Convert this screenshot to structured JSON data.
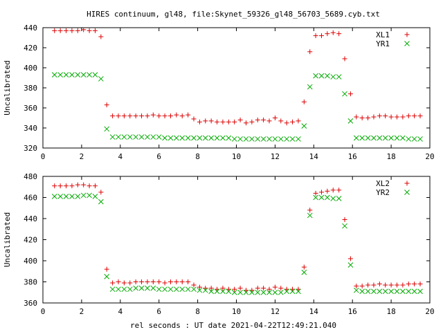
{
  "title": "HIRES continuum, gl48, file:Skynet_59326_gl48_56703_5689.cyb.txt",
  "xlabel": "rel seconds : UT date 2021-04-22T12:49:21.040",
  "colors": {
    "red": "#dd0000",
    "green": "#00aa00",
    "frame": "#000000"
  },
  "chart_data": [
    {
      "type": "scatter",
      "ylabel": "Uncalibrated",
      "xlim": [
        0,
        20
      ],
      "ylim": [
        320,
        440
      ],
      "xticks": [
        0,
        2,
        4,
        6,
        8,
        10,
        12,
        14,
        16,
        18,
        20
      ],
      "yticks": [
        320,
        340,
        360,
        380,
        400,
        420,
        440
      ],
      "legend_position": "top-right",
      "series": [
        {
          "name": "XL1",
          "marker": "plus",
          "color": "#dd0000",
          "x": [
            0.6,
            0.9,
            1.2,
            1.5,
            1.8,
            2.1,
            2.4,
            2.7,
            3.0,
            3.3,
            3.6,
            3.9,
            4.2,
            4.5,
            4.8,
            5.1,
            5.4,
            5.7,
            6.0,
            6.3,
            6.6,
            6.9,
            7.2,
            7.5,
            7.8,
            8.1,
            8.4,
            8.7,
            9.0,
            9.3,
            9.6,
            9.9,
            10.2,
            10.5,
            10.8,
            11.1,
            11.4,
            11.7,
            12.0,
            12.3,
            12.6,
            12.9,
            13.2,
            13.5,
            13.8,
            14.1,
            14.4,
            14.7,
            15.0,
            15.3,
            15.6,
            15.9,
            16.2,
            16.5,
            16.8,
            17.1,
            17.4,
            17.7,
            18.0,
            18.3,
            18.6,
            18.9,
            19.2,
            19.5
          ],
          "y": [
            437,
            437,
            437,
            437,
            437,
            438,
            437,
            437,
            431,
            363,
            352,
            352,
            352,
            352,
            352,
            352,
            352,
            353,
            352,
            352,
            352,
            353,
            352,
            353,
            349,
            346,
            347,
            347,
            346,
            346,
            346,
            346,
            348,
            345,
            346,
            348,
            348,
            347,
            350,
            347,
            345,
            346,
            347,
            366,
            416,
            432,
            432,
            434,
            435,
            434,
            409,
            374,
            351,
            350,
            350,
            351,
            352,
            352,
            351,
            351,
            351,
            352,
            352,
            352
          ]
        },
        {
          "name": "YR1",
          "marker": "cross",
          "color": "#00aa00",
          "x": [
            0.6,
            0.9,
            1.2,
            1.5,
            1.8,
            2.1,
            2.4,
            2.7,
            3.0,
            3.3,
            3.6,
            3.9,
            4.2,
            4.5,
            4.8,
            5.1,
            5.4,
            5.7,
            6.0,
            6.3,
            6.6,
            6.9,
            7.2,
            7.5,
            7.8,
            8.1,
            8.4,
            8.7,
            9.0,
            9.3,
            9.6,
            9.9,
            10.2,
            10.5,
            10.8,
            11.1,
            11.4,
            11.7,
            12.0,
            12.3,
            12.6,
            12.9,
            13.2,
            13.5,
            13.8,
            14.1,
            14.4,
            14.7,
            15.0,
            15.3,
            15.6,
            15.9,
            16.2,
            16.5,
            16.8,
            17.1,
            17.4,
            17.7,
            18.0,
            18.3,
            18.6,
            18.9,
            19.2,
            19.5
          ],
          "y": [
            393,
            393,
            393,
            393,
            393,
            393,
            393,
            393,
            389,
            339,
            331,
            331,
            331,
            331,
            331,
            331,
            331,
            331,
            331,
            330,
            330,
            330,
            330,
            330,
            330,
            330,
            330,
            330,
            330,
            330,
            330,
            329,
            329,
            329,
            329,
            329,
            329,
            329,
            329,
            329,
            329,
            329,
            329,
            342,
            381,
            392,
            392,
            392,
            391,
            391,
            374,
            347,
            330,
            330,
            330,
            330,
            330,
            330,
            330,
            330,
            330,
            329,
            329,
            329
          ]
        }
      ]
    },
    {
      "type": "scatter",
      "ylabel": "Uncalibrated",
      "xlim": [
        0,
        20
      ],
      "ylim": [
        360,
        480
      ],
      "xticks": [
        0,
        2,
        4,
        6,
        8,
        10,
        12,
        14,
        16,
        18,
        20
      ],
      "yticks": [
        360,
        380,
        400,
        420,
        440,
        460,
        480
      ],
      "legend_position": "top-right",
      "series": [
        {
          "name": "XL2",
          "marker": "plus",
          "color": "#dd0000",
          "x": [
            0.6,
            0.9,
            1.2,
            1.5,
            1.8,
            2.1,
            2.4,
            2.7,
            3.0,
            3.3,
            3.6,
            3.9,
            4.2,
            4.5,
            4.8,
            5.1,
            5.4,
            5.7,
            6.0,
            6.3,
            6.6,
            6.9,
            7.2,
            7.5,
            7.8,
            8.1,
            8.4,
            8.7,
            9.0,
            9.3,
            9.6,
            9.9,
            10.2,
            10.5,
            10.8,
            11.1,
            11.4,
            11.7,
            12.0,
            12.3,
            12.6,
            12.9,
            13.2,
            13.5,
            13.8,
            14.1,
            14.4,
            14.7,
            15.0,
            15.3,
            15.6,
            15.9,
            16.2,
            16.5,
            16.8,
            17.1,
            17.4,
            17.7,
            18.0,
            18.3,
            18.6,
            18.9,
            19.2,
            19.5
          ],
          "y": [
            471,
            471,
            471,
            471,
            472,
            472,
            471,
            471,
            465,
            392,
            379,
            380,
            379,
            379,
            380,
            380,
            380,
            380,
            380,
            379,
            380,
            380,
            380,
            380,
            377,
            375,
            374,
            374,
            373,
            374,
            373,
            373,
            374,
            372,
            372,
            374,
            374,
            373,
            375,
            374,
            373,
            373,
            373,
            394,
            448,
            464,
            465,
            466,
            467,
            467,
            439,
            402,
            376,
            376,
            377,
            377,
            378,
            377,
            377,
            377,
            377,
            378,
            378,
            378
          ]
        },
        {
          "name": "YR2",
          "marker": "cross",
          "color": "#00aa00",
          "x": [
            0.6,
            0.9,
            1.2,
            1.5,
            1.8,
            2.1,
            2.4,
            2.7,
            3.0,
            3.3,
            3.6,
            3.9,
            4.2,
            4.5,
            4.8,
            5.1,
            5.4,
            5.7,
            6.0,
            6.3,
            6.6,
            6.9,
            7.2,
            7.5,
            7.8,
            8.1,
            8.4,
            8.7,
            9.0,
            9.3,
            9.6,
            9.9,
            10.2,
            10.5,
            10.8,
            11.1,
            11.4,
            11.7,
            12.0,
            12.3,
            12.6,
            12.9,
            13.2,
            13.5,
            13.8,
            14.1,
            14.4,
            14.7,
            15.0,
            15.3,
            15.6,
            15.9,
            16.2,
            16.5,
            16.8,
            17.1,
            17.4,
            17.7,
            18.0,
            18.3,
            18.6,
            18.9,
            19.2,
            19.5
          ],
          "y": [
            461,
            461,
            461,
            461,
            461,
            462,
            462,
            461,
            456,
            385,
            373,
            373,
            373,
            373,
            374,
            374,
            374,
            374,
            373,
            373,
            373,
            373,
            373,
            373,
            373,
            372,
            372,
            371,
            371,
            371,
            371,
            370,
            370,
            370,
            370,
            370,
            370,
            370,
            370,
            370,
            371,
            371,
            371,
            389,
            443,
            460,
            460,
            460,
            459,
            459,
            433,
            396,
            372,
            371,
            371,
            371,
            371,
            371,
            371,
            371,
            371,
            371,
            371,
            371
          ]
        }
      ]
    }
  ]
}
